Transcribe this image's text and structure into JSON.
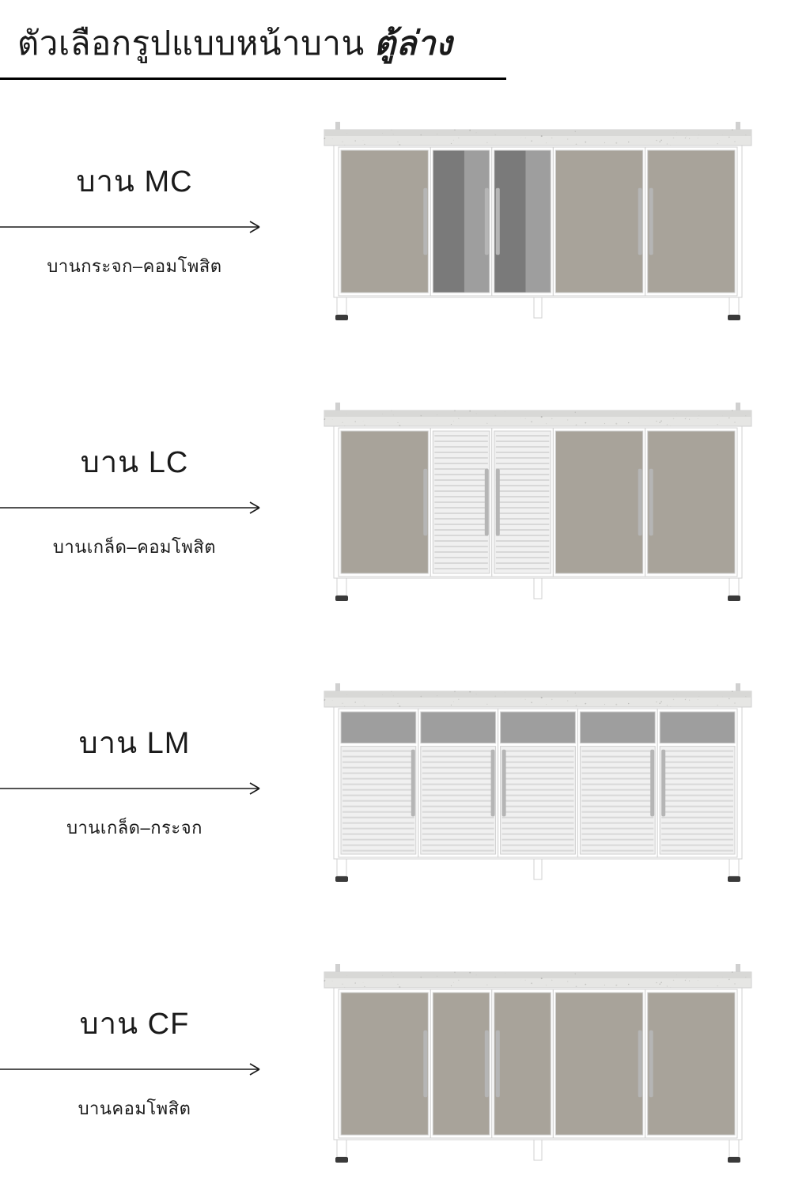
{
  "title_main": "ตัวเลือกรูปแบบหน้าบาน ",
  "title_em": "ตู้ล่าง",
  "colors": {
    "frame": "#ffffff",
    "frame_edge": "#d0d0d0",
    "panel_composite": "#a8a39a",
    "panel_glass_dark": "#7a7a7a",
    "panel_glass_mid": "#9e9e9e",
    "panel_light": "#f0f0f0",
    "handle": "#b5b5b5",
    "countertop1": "#e6e6e4",
    "countertop2": "#d8d8d6",
    "foot": "#3a3a3a",
    "louver_line": "#d8d8d8",
    "arrow": "#1a1a1a"
  },
  "options": [
    {
      "code": "MC",
      "title": "บาน MC",
      "subtitle": "บานกระจก–คอมโพสิต",
      "doors": [
        {
          "type": "composite",
          "w": 1.2
        },
        {
          "type": "glass",
          "w": 0.8
        },
        {
          "type": "glass",
          "w": 0.8
        },
        {
          "type": "composite",
          "w": 1.2
        },
        {
          "type": "composite",
          "w": 1.2
        }
      ],
      "handles": [
        "right",
        "right",
        "left",
        "right",
        "left"
      ]
    },
    {
      "code": "LC",
      "title": "บาน LC",
      "subtitle": "บานเกล็ด–คอมโพสิต",
      "doors": [
        {
          "type": "composite",
          "w": 1.2
        },
        {
          "type": "louver",
          "w": 0.8
        },
        {
          "type": "louver",
          "w": 0.8
        },
        {
          "type": "composite",
          "w": 1.2
        },
        {
          "type": "composite",
          "w": 1.2
        }
      ],
      "handles": [
        "right",
        "right",
        "left",
        "right",
        "left"
      ]
    },
    {
      "code": "LM",
      "title": "บาน LM",
      "subtitle": "บานเกล็ด–กระจก",
      "doors": [
        {
          "type": "louver_glass",
          "w": 1
        },
        {
          "type": "louver_glass",
          "w": 1
        },
        {
          "type": "louver_glass",
          "w": 1
        },
        {
          "type": "louver_glass",
          "w": 1
        },
        {
          "type": "louver_glass",
          "w": 1
        }
      ],
      "handles": [
        "right",
        "right",
        "left",
        "right",
        "left"
      ]
    },
    {
      "code": "CF",
      "title": "บาน CF",
      "subtitle": "บานคอมโพสิต",
      "doors": [
        {
          "type": "composite",
          "w": 1.2
        },
        {
          "type": "composite",
          "w": 0.8
        },
        {
          "type": "composite",
          "w": 0.8
        },
        {
          "type": "composite",
          "w": 1.2
        },
        {
          "type": "composite",
          "w": 1.2
        }
      ],
      "handles": [
        "right",
        "right",
        "left",
        "right",
        "left"
      ]
    }
  ]
}
